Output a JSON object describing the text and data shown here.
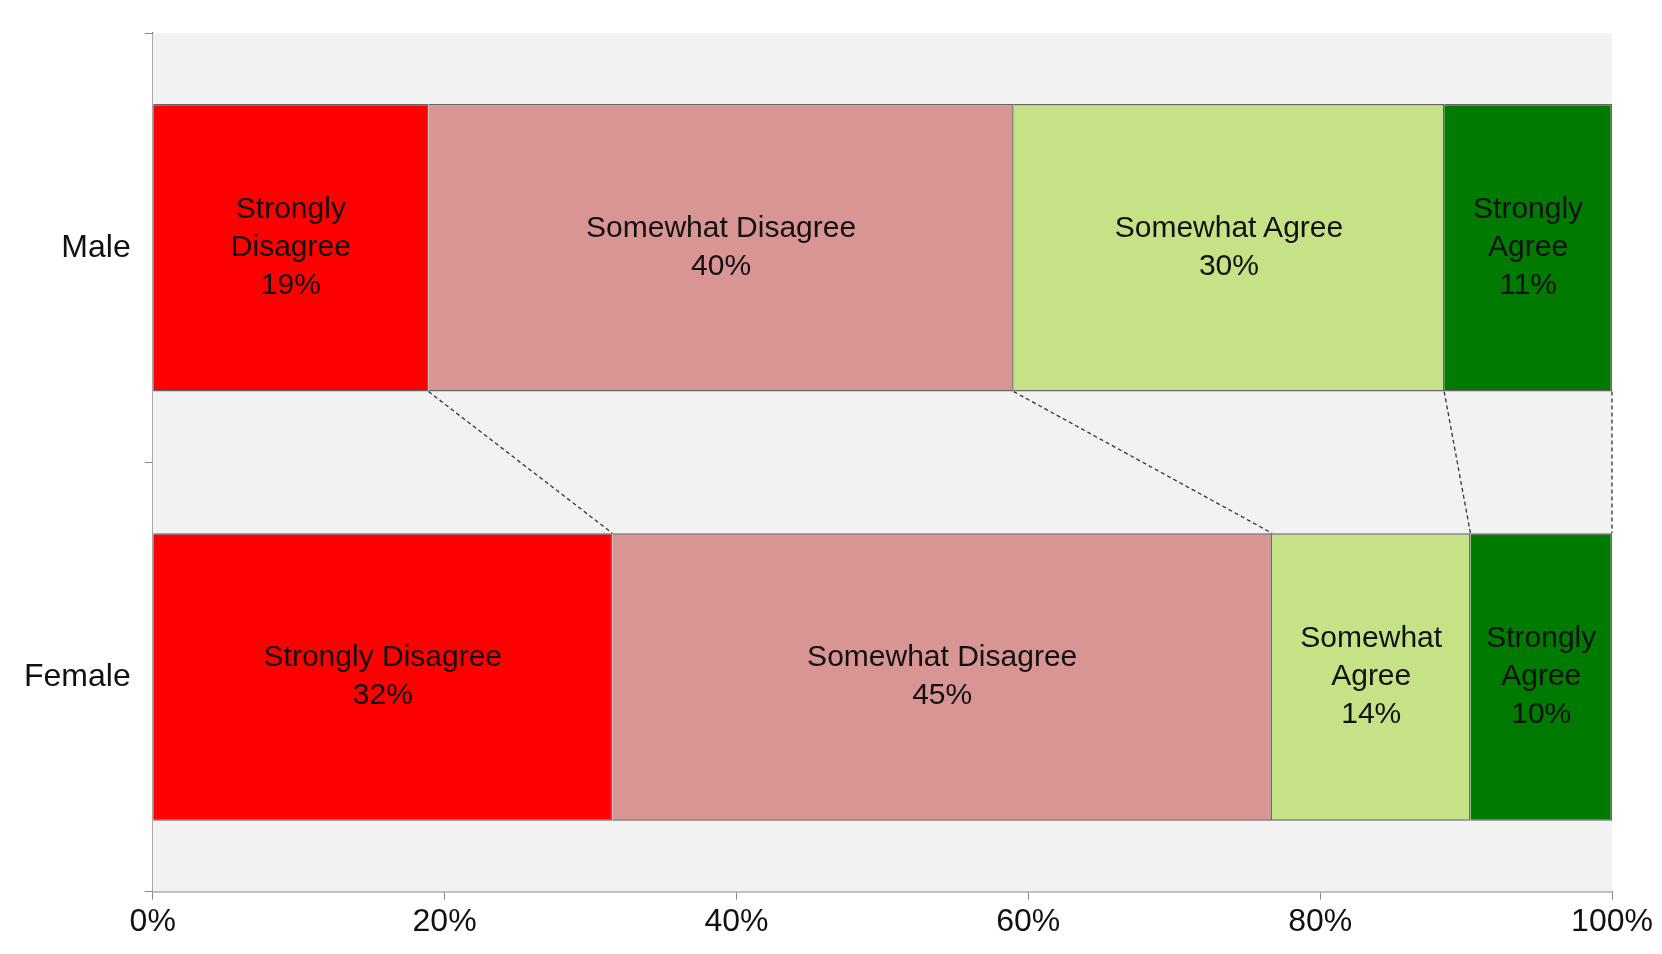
{
  "chart_data": {
    "type": "bar",
    "orientation": "horizontal",
    "stacked": true,
    "categories": [
      "Male",
      "Female"
    ],
    "series": [
      {
        "name": "Strongly Disagree",
        "color": "#ff0000",
        "values": [
          18.9,
          31.5
        ],
        "value_labels": [
          "19%",
          "32%"
        ]
      },
      {
        "name": "Somewhat Disagree",
        "color": "#d99594",
        "values": [
          40.1,
          45.2
        ],
        "value_labels": [
          "40%",
          "45%"
        ]
      },
      {
        "name": "Somewhat Agree",
        "color": "#c6e287",
        "values": [
          29.5,
          13.6
        ],
        "value_labels": [
          "30%",
          "14%"
        ]
      },
      {
        "name": "Strongly Agree",
        "color": "#007a00",
        "values": [
          11.5,
          9.7
        ],
        "value_labels": [
          "11%",
          "10%"
        ]
      }
    ],
    "xlim": [
      0,
      100
    ],
    "xticks": [
      {
        "value": 0,
        "label": "0%"
      },
      {
        "value": 20,
        "label": "20%"
      },
      {
        "value": 40,
        "label": "40%"
      },
      {
        "value": 60,
        "label": "60%"
      },
      {
        "value": 80,
        "label": "80%"
      },
      {
        "value": 100,
        "label": "100%"
      }
    ],
    "grid": false,
    "legend": false
  }
}
